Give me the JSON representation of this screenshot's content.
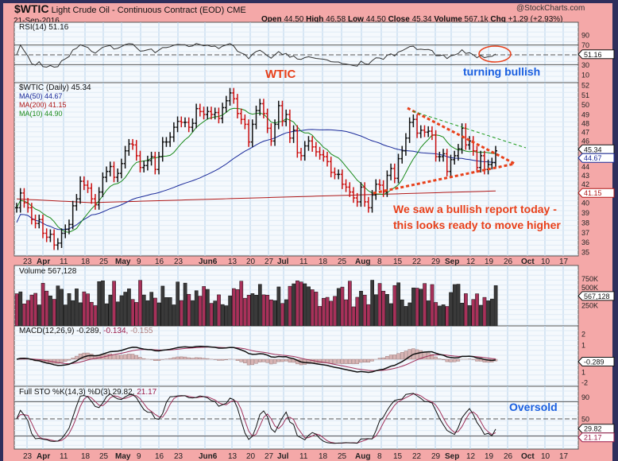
{
  "header": {
    "symbol": "$WTIC",
    "name": "Light Crude Oil - Continuous Contract (EOD) CME",
    "date": "21-Sep-2016",
    "copyright": "@StockCharts.com",
    "stats": [
      {
        "label": "Open",
        "value": "44.50"
      },
      {
        "label": "High",
        "value": "46.58"
      },
      {
        "label": "Low",
        "value": "44.50"
      },
      {
        "label": "Close",
        "value": "45.34"
      },
      {
        "label": "Volume",
        "value": "567.1k"
      },
      {
        "label": "Chg",
        "value": "+1.29 (+2.93%)"
      }
    ]
  },
  "panels": {
    "rsi": {
      "label": "RSI(14) 51.16",
      "axis": [
        "90",
        "70",
        "30",
        "10"
      ],
      "marker": "51.16"
    },
    "price": {
      "label": "$WTIC (Daily) 45.34",
      "ma50": "MA(50) 44.67",
      "ma200": "MA(200) 41.15",
      "ma10": "MA(10) 44.90",
      "axis": [
        "52",
        "51",
        "50",
        "49",
        "48",
        "47",
        "46",
        "44",
        "43",
        "42",
        "40",
        "39",
        "38",
        "37",
        "36",
        "35"
      ],
      "axis_values": [
        52,
        51,
        50,
        49,
        48,
        47,
        46,
        44,
        43,
        42,
        40,
        39,
        38,
        37,
        36,
        35
      ],
      "markers": [
        "45.34",
        "44.67",
        "41.15"
      ]
    },
    "volume": {
      "label": "Volume 567,128",
      "axis": [
        "750K",
        "500K",
        "250K"
      ],
      "marker": "567,128"
    },
    "macd": {
      "label": "MACD(12,26,9) -0.289,",
      "signal": "-0.134,",
      "hist": "-0.155",
      "axis": [
        "2",
        "1",
        "1",
        "-2"
      ],
      "marker": "-0.289"
    },
    "sto": {
      "label": "Full STO %K(14,3) %D(3) 29.82,",
      "d": "21.17",
      "axis": [
        "90",
        "50"
      ],
      "markers": [
        "29.82",
        "21.17"
      ]
    }
  },
  "dates": [
    "23",
    "Apr",
    "11",
    "18",
    "25",
    "May",
    "9",
    "16",
    "23",
    "Jun6",
    "13",
    "20",
    "27",
    "Jul",
    "11",
    "18",
    "25",
    "Aug",
    "8",
    "15",
    "22",
    "29",
    "Sep",
    "12",
    "19",
    "26",
    "Oct",
    "10",
    "17"
  ],
  "annotations": {
    "wtic": "WTIC",
    "turning": "turning bullish",
    "report1": "We saw a bullish report today -",
    "report2": "this looks ready to move higher",
    "oversold": "Oversold"
  },
  "colors": {
    "up": "#111111",
    "down": "#cc1111",
    "ma50": "#1a2a9a",
    "ma200": "#b01818",
    "ma10": "#1a8a1a",
    "vol_up": "#3a3a3a",
    "vol_down": "#a8315a",
    "annot_red": "#e8401a",
    "annot_blue": "#1a5fe0"
  },
  "chart_data": {
    "type": "ohlc",
    "title": "$WTIC Light Crude Oil - Continuous Contract (EOD) CME",
    "period": "Mar 18 2016 - Sep 21 2016",
    "closes": [
      39.5,
      41,
      40,
      39.5,
      38.3,
      37.9,
      38.3,
      36.9,
      36.5,
      36.8,
      35.7,
      35.9,
      36.9,
      37.3,
      37.8,
      39.7,
      40.4,
      42.2,
      41.8,
      41.5,
      40.4,
      39.8,
      41.1,
      42.6,
      43.2,
      43.7,
      42.6,
      43.0,
      44.0,
      45.3,
      46.0,
      45.9,
      44.8,
      43.6,
      43.8,
      44.3,
      44.7,
      43.4,
      44.7,
      46.2,
      46.2,
      46.7,
      47.7,
      48.3,
      48.2,
      48.2,
      47.7,
      48.1,
      49.6,
      49.3,
      49.0,
      49.3,
      49.0,
      49.2,
      48.6,
      49.7,
      50.4,
      51.2,
      50.6,
      49.1,
      48.5,
      48.0,
      46.2,
      48.0,
      49.4,
      50.1,
      49.1,
      47.6,
      46.3,
      48.0,
      49.9,
      48.3,
      49.0,
      46.6,
      47.4,
      45.1,
      44.8,
      45.8,
      46.3,
      45.7,
      45.2,
      44.9,
      44.7,
      44.2,
      43.1,
      42.9,
      42.9,
      41.9,
      41.6,
      41.1,
      40.5,
      40.1,
      41.6,
      40.1,
      39.5,
      40.8,
      41.9,
      41.8,
      41.1,
      42.8,
      43.5,
      42.5,
      44.5,
      45.3,
      46.6,
      48.2,
      48.5,
      47.1,
      47.4,
      47.2,
      47.3,
      46.9,
      44.7,
      44.7,
      45.0,
      43.2,
      44.4,
      44.8,
      45.5,
      47.6,
      45.9,
      46.3,
      45.3,
      43.6,
      44.8,
      43.4,
      43.9,
      44.1,
      45.3
    ],
    "ylim": [
      35,
      52
    ]
  }
}
